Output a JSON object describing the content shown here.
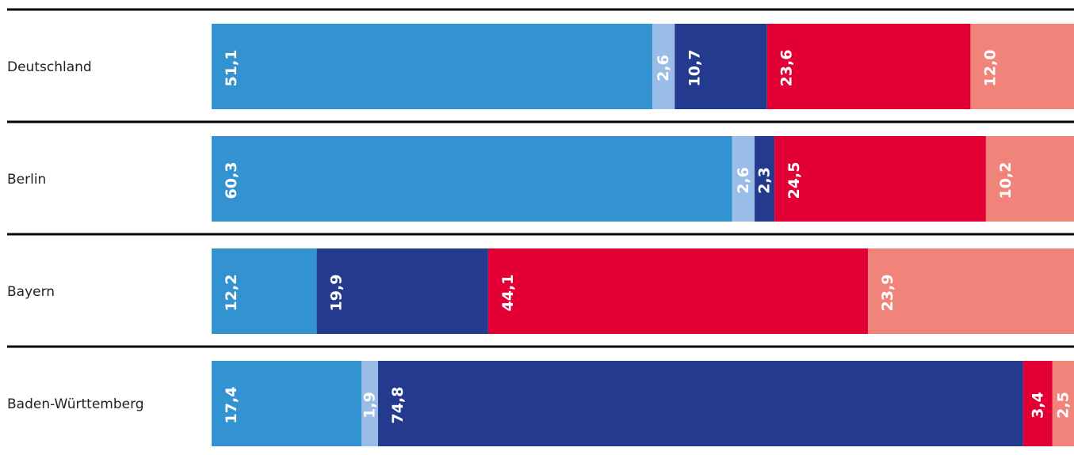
{
  "chart_data": {
    "type": "bar",
    "orientation": "horizontal",
    "stacked": true,
    "categories": [
      "Deutschland",
      "Berlin",
      "Bayern",
      "Baden-Württemberg"
    ],
    "series": [
      {
        "color": "#3392d0",
        "values": [
          51.1,
          60.3,
          12.2,
          17.4
        ],
        "labels": [
          "51,1",
          "60,3",
          "12,2",
          "17,4"
        ]
      },
      {
        "color": "#99bde6",
        "values": [
          2.6,
          2.6,
          0,
          1.9
        ],
        "labels": [
          "2,6",
          "2,6",
          "",
          "1,9"
        ]
      },
      {
        "color": "#233a8f",
        "values": [
          10.7,
          2.3,
          19.9,
          74.8
        ],
        "labels": [
          "10,7",
          "2,3",
          "19,9",
          "74,8"
        ]
      },
      {
        "color": "#e30034",
        "values": [
          23.6,
          24.5,
          44.1,
          3.4
        ],
        "labels": [
          "23,6",
          "24,5",
          "44,1",
          "3,4"
        ]
      },
      {
        "color": "#f1847a",
        "values": [
          12.0,
          10.2,
          23.9,
          2.5
        ],
        "labels": [
          "12,0",
          "10,2",
          "23,9",
          "2,5"
        ]
      }
    ],
    "xlim": [
      0,
      100
    ],
    "grid": false,
    "legend": "none"
  }
}
